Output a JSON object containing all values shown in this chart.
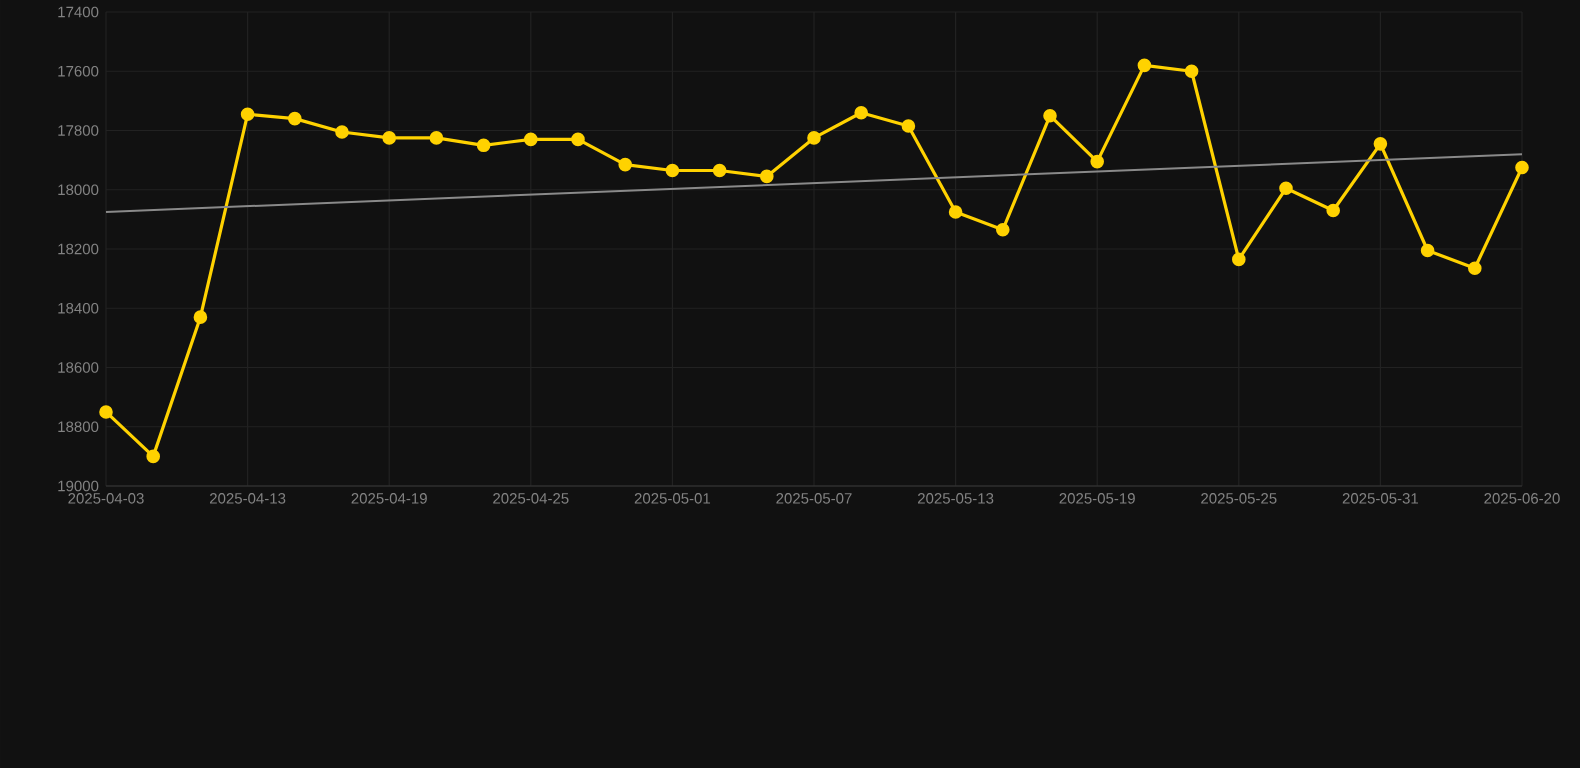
{
  "chart_data": {
    "type": "line",
    "categories": [
      "2025-04-03",
      null,
      null,
      "2025-04-13",
      null,
      null,
      "2025-04-19",
      null,
      null,
      "2025-04-25",
      null,
      null,
      "2025-05-01",
      null,
      null,
      "2025-05-07",
      null,
      null,
      "2025-05-13",
      null,
      null,
      "2025-05-19",
      null,
      null,
      "2025-05-25",
      null,
      null,
      "2025-05-31",
      null,
      null,
      "2025-06-20"
    ],
    "series": [
      {
        "color": "#ffd200",
        "values": [
          18750,
          18900,
          18430,
          17745,
          17760,
          17805,
          17825,
          17825,
          17850,
          17830,
          17830,
          17915,
          17935,
          17935,
          17955,
          17825,
          17740,
          17785,
          18075,
          18135,
          17750,
          17905,
          17580,
          17600,
          18235,
          17995,
          18070,
          17845,
          18205,
          18265,
          17925
        ]
      },
      {
        "type": "line",
        "color": "#8a8a8a",
        "marker": "none",
        "values": [
          18075,
          null,
          null,
          null,
          null,
          null,
          null,
          null,
          null,
          null,
          null,
          null,
          null,
          null,
          null,
          null,
          null,
          null,
          null,
          null,
          null,
          null,
          null,
          null,
          null,
          null,
          null,
          null,
          null,
          null,
          17880
        ]
      }
    ],
    "ylim": [
      19000,
      17400
    ],
    "yticks": [
      17400,
      17600,
      17800,
      18000,
      18200,
      18400,
      18600,
      18800,
      19000
    ],
    "grid": true,
    "marker": "circle",
    "line_style": "solid"
  }
}
